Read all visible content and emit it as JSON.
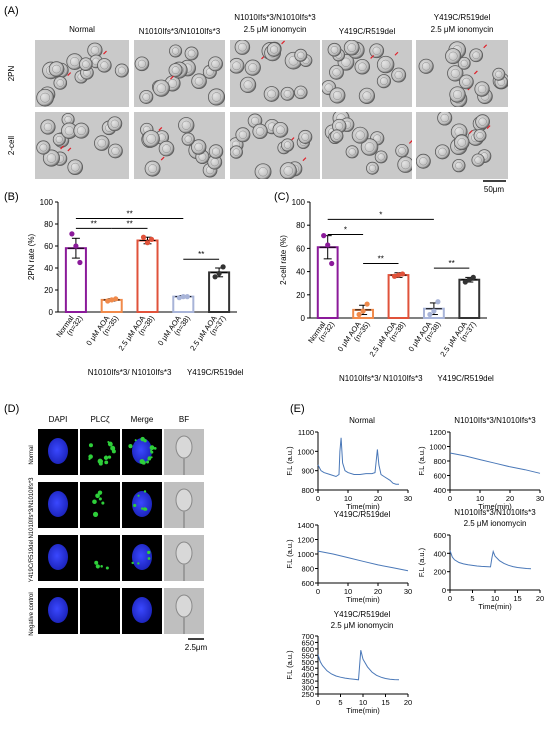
{
  "panel_labels": {
    "a": "(A)",
    "b": "(B)",
    "c": "(C)",
    "d": "(D)",
    "e": "(E)"
  },
  "panel_a": {
    "col_headers": [
      {
        "lines": [
          "Normal"
        ]
      },
      {
        "lines": [
          "N1010Ifs*3/N1010Ifs*3"
        ]
      },
      {
        "lines": [
          "N1010Ifs*3/N1010Ifs*3",
          "2.5 μM ionomycin"
        ]
      },
      {
        "lines": [
          "Y419C/R519del"
        ]
      },
      {
        "lines": [
          "Y419C/R519del",
          "2.5 μM ionomycin"
        ]
      }
    ],
    "row_labels": [
      "2PN",
      "2-cell"
    ],
    "scale_bar": "50μm"
  },
  "panel_b": {
    "ylabel": "2PN rate (%)",
    "bar_labels": [
      {
        "top": "Normal",
        "sub": "(n=32)"
      },
      {
        "top": "0 μM AOA",
        "sub": "(n=35)"
      },
      {
        "top": "2.5 μM AOA",
        "sub": "(n=38)"
      },
      {
        "top": "0 μM AOA",
        "sub": "(n=38)"
      },
      {
        "top": "2.5 μM AOA",
        "sub": "(n=37)"
      }
    ],
    "group_labels": [
      "N1010Ifs*3/ N1010Ifs*3",
      "Y419C/R519del"
    ],
    "sig": [
      "**",
      "**",
      "**",
      "**"
    ]
  },
  "panel_c": {
    "ylabel": "2-cell rate (%)",
    "bar_labels": [
      {
        "top": "Normal",
        "sub": "(n=32)"
      },
      {
        "top": "0 μM AOA",
        "sub": "(n=35)"
      },
      {
        "top": "2.5 μM AOA",
        "sub": "(n=38)"
      },
      {
        "top": "0 μM AOA",
        "sub": "(n=38)"
      },
      {
        "top": "2.5 μM AOA",
        "sub": "(n=37)"
      }
    ],
    "group_labels": [
      "N1010Ifs*3/ N1010Ifs*3",
      "Y419C/R519del"
    ],
    "sig": [
      "*",
      "*",
      "**",
      "**"
    ]
  },
  "panel_d": {
    "col_headers": [
      "DAPI",
      "PLCζ",
      "Merge",
      "BF"
    ],
    "row_labels": [
      "Normal",
      "N1010Ifs*3/N1010Ifs*3",
      "Y419C/R519del",
      "Negative control"
    ],
    "scale_bar": "2.5μm"
  },
  "colors": {
    "normal": "#8b1a9a",
    "n1010_0": "#f08a4b",
    "n1010_25": "#e0523a",
    "y419_0": "#a8b4d8",
    "y419_25": "#333333",
    "trace": "#4a78b8",
    "dapi": "#1f2bd6",
    "plc": "#2ecf3a"
  },
  "chart_data": [
    {
      "id": "B",
      "type": "bar",
      "ylabel": "2PN rate (%)",
      "ylim": [
        0,
        100
      ],
      "yticks": [
        0,
        20,
        40,
        60,
        80,
        100
      ],
      "categories": [
        "Normal (n=32)",
        "0 μM AOA (n=35)",
        "2.5 μM AOA (n=38)",
        "0 μM AOA (n=38)",
        "2.5 μM AOA (n=37)"
      ],
      "values": [
        58,
        11,
        65,
        14,
        36
      ],
      "errors": [
        9,
        1,
        3,
        1,
        4
      ],
      "points": [
        [
          71,
          60,
          45
        ],
        [
          10,
          11,
          12
        ],
        [
          68,
          63,
          66
        ],
        [
          13,
          14,
          14
        ],
        [
          32,
          35,
          41
        ]
      ],
      "colors": [
        "#8b1a9a",
        "#f08a4b",
        "#e0523a",
        "#a8b4d8",
        "#333333"
      ],
      "significance": [
        {
          "from": 0,
          "to": 1,
          "label": "**"
        },
        {
          "from": 1,
          "to": 2,
          "label": "**"
        },
        {
          "from": 0,
          "to": 3,
          "label": "**"
        },
        {
          "from": 3,
          "to": 4,
          "label": "**"
        }
      ]
    },
    {
      "id": "C",
      "type": "bar",
      "ylabel": "2-cell rate (%)",
      "ylim": [
        0,
        100
      ],
      "yticks": [
        0,
        20,
        40,
        60,
        80,
        100
      ],
      "categories": [
        "Normal (n=32)",
        "0 μM AOA (n=35)",
        "2.5 μM AOA (n=38)",
        "0 μM AOA (n=38)",
        "2.5 μM AOA (n=37)"
      ],
      "values": [
        61,
        7,
        37,
        8,
        33
      ],
      "errors": [
        10,
        4,
        2,
        5,
        2
      ],
      "points": [
        [
          71,
          63,
          47
        ],
        [
          3,
          6,
          12
        ],
        [
          36,
          37,
          38
        ],
        [
          3,
          6,
          14
        ],
        [
          31,
          33,
          35
        ]
      ],
      "colors": [
        "#8b1a9a",
        "#f08a4b",
        "#e0523a",
        "#a8b4d8",
        "#333333"
      ],
      "significance": [
        {
          "from": 0,
          "to": 1,
          "label": "*"
        },
        {
          "from": 0,
          "to": 3,
          "label": "*"
        },
        {
          "from": 1,
          "to": 2,
          "label": "**"
        },
        {
          "from": 3,
          "to": 4,
          "label": "**"
        }
      ]
    },
    {
      "id": "E1",
      "type": "line",
      "title": "Normal",
      "xlabel": "Time(min)",
      "ylabel": "F.L (a.u.)",
      "xlim": [
        0,
        30
      ],
      "ylim": [
        800,
        1100
      ],
      "xticks": [
        0,
        10,
        20,
        30
      ],
      "yticks": [
        800,
        900,
        1000,
        1100
      ],
      "series": [
        {
          "x": [
            0,
            1,
            2,
            4,
            6,
            7,
            7.3,
            7.7,
            8.2,
            9,
            10,
            12,
            14,
            16,
            18,
            19,
            19.4,
            19.8,
            20.3,
            21,
            22,
            24,
            25,
            26,
            27
          ],
          "y": [
            930,
            900,
            890,
            880,
            870,
            880,
            1000,
            1070,
            940,
            900,
            890,
            880,
            880,
            885,
            885,
            890,
            950,
            1010,
            930,
            880,
            870,
            850,
            835,
            830,
            830
          ]
        }
      ]
    },
    {
      "id": "E2",
      "type": "line",
      "title": "N1010Ifs*3/N1010Ifs*3",
      "xlabel": "Time(min)",
      "ylabel": "F.L (a.u.)",
      "xlim": [
        0,
        30
      ],
      "ylim": [
        400,
        1200
      ],
      "xticks": [
        0,
        10,
        20,
        30
      ],
      "yticks": [
        400,
        600,
        800,
        1000,
        1200
      ],
      "series": [
        {
          "x": [
            0,
            5,
            10,
            15,
            20,
            25,
            30
          ],
          "y": [
            910,
            870,
            820,
            770,
            720,
            680,
            630
          ]
        }
      ]
    },
    {
      "id": "E3",
      "type": "line",
      "title": "Y419C/R519del",
      "xlabel": "Time(min)",
      "ylabel": "F.L (a.u.)",
      "xlim": [
        0,
        30
      ],
      "ylim": [
        600,
        1400
      ],
      "xticks": [
        0,
        10,
        20,
        30
      ],
      "yticks": [
        600,
        800,
        1000,
        1200,
        1400
      ],
      "series": [
        {
          "x": [
            0,
            5,
            10,
            15,
            20,
            25,
            30
          ],
          "y": [
            1040,
            1000,
            950,
            900,
            850,
            810,
            770
          ]
        }
      ]
    },
    {
      "id": "E4",
      "type": "line",
      "title": "N1010Ifs*3/N1010Ifs*3 2.5 μM ionomycin",
      "xlabel": "Time(min)",
      "ylabel": "F.L (a.u.)",
      "xlim": [
        0,
        20
      ],
      "ylim": [
        0,
        600
      ],
      "xticks": [
        0,
        5,
        10,
        15,
        20
      ],
      "yticks": [
        0,
        200,
        400,
        600
      ],
      "series": [
        {
          "x": [
            0,
            0.5,
            1,
            2,
            3,
            4,
            5,
            6,
            7,
            8,
            9,
            9.3,
            9.6,
            10,
            11,
            12,
            13,
            14,
            15,
            16,
            17,
            18
          ],
          "y": [
            430,
            360,
            330,
            300,
            285,
            275,
            268,
            262,
            258,
            255,
            252,
            350,
            420,
            370,
            320,
            290,
            270,
            255,
            245,
            240,
            235,
            232
          ]
        }
      ]
    },
    {
      "id": "E5",
      "type": "line",
      "title": "Y419C/R519del 2.5 μM ionomycin",
      "xlabel": "Time(min)",
      "ylabel": "F.L (a.u.)",
      "xlim": [
        0,
        20
      ],
      "ylim": [
        250,
        700
      ],
      "xticks": [
        0,
        5,
        10,
        15,
        20
      ],
      "yticks": [
        250,
        300,
        350,
        400,
        450,
        500,
        550,
        600,
        650,
        700
      ],
      "series": [
        {
          "x": [
            0,
            0.5,
            1,
            2,
            3,
            4,
            5,
            6,
            7,
            8,
            9,
            9.2,
            9.5,
            10,
            11,
            12,
            13,
            14,
            15,
            16,
            17,
            18
          ],
          "y": [
            555,
            500,
            470,
            430,
            405,
            390,
            380,
            373,
            368,
            364,
            360,
            450,
            590,
            520,
            460,
            420,
            395,
            380,
            370,
            365,
            362,
            360
          ]
        }
      ]
    }
  ]
}
